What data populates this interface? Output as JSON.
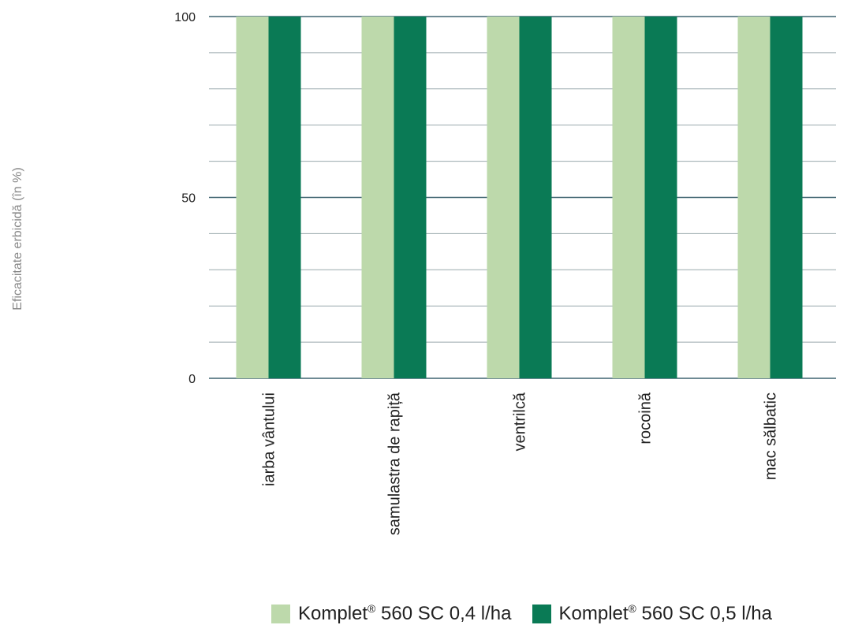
{
  "chart_data": {
    "type": "bar",
    "ylabel": "Eficacitate erbicidă (în %)",
    "ylim": [
      0,
      100
    ],
    "yticks": [
      0,
      50,
      100
    ],
    "minor_step": 10,
    "grid": true,
    "categories": [
      "iarba vântului",
      "samulastra de rapiță",
      "ventrilcă",
      "rocoină",
      "mac sălbatic"
    ],
    "series": [
      {
        "name": "Komplet® 560 SC 0,4 l/ha",
        "color": "#bdd9ab",
        "values": [
          100,
          100,
          100,
          100,
          100
        ]
      },
      {
        "name": "Komplet® 560 SC 0,5 l/ha",
        "color": "#0a7a55",
        "values": [
          100,
          100,
          100,
          100,
          100
        ]
      }
    ],
    "legend_position": "bottom"
  },
  "legend": {
    "items": [
      {
        "prefix": "Komplet",
        "sup": "®",
        "suffix": " 560 SC 0,4 l/ha",
        "color": "#bdd9ab"
      },
      {
        "prefix": "Komplet",
        "sup": "®",
        "suffix": " 560 SC 0,5 l/ha",
        "color": "#0a7a55"
      }
    ]
  }
}
